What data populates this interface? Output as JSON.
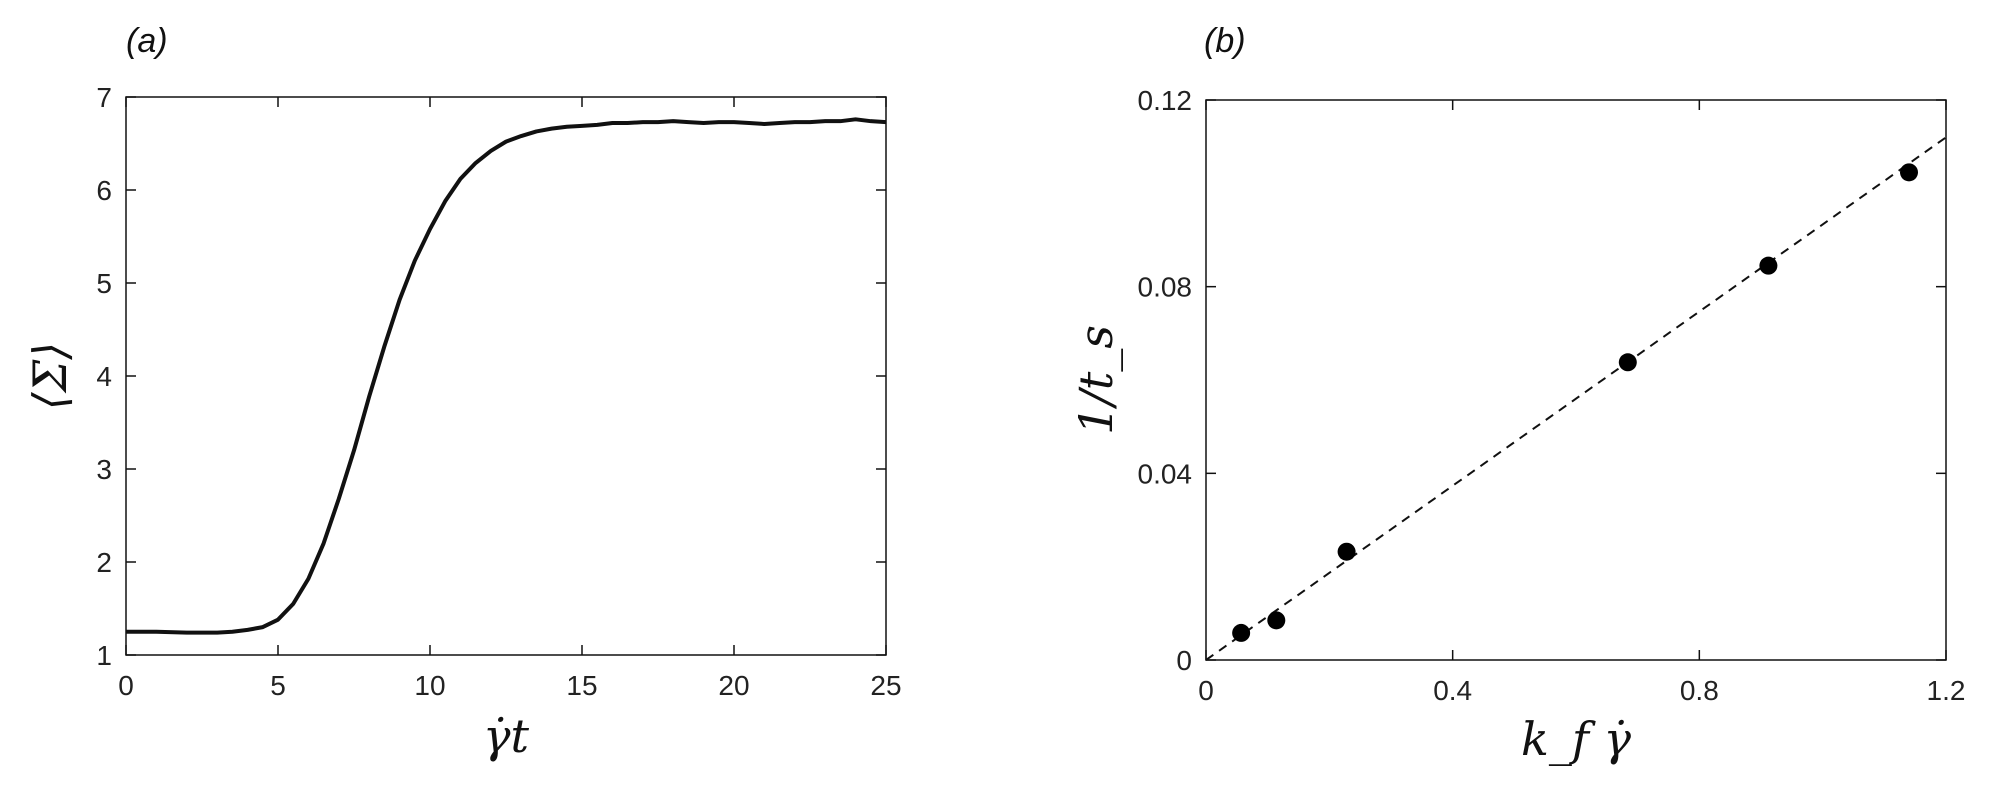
{
  "chart_data": [
    {
      "panel": "(a)",
      "type": "line",
      "xlabel": "γ̇t",
      "ylabel": "⟨Σ⟩",
      "xlim": [
        0,
        25
      ],
      "ylim": [
        1,
        7
      ],
      "xticks": [
        "0",
        "5",
        "10",
        "15",
        "20",
        "25"
      ],
      "yticks": [
        "1",
        "2",
        "3",
        "4",
        "5",
        "6",
        "7"
      ],
      "grid": false,
      "series": [
        {
          "color": "#111111",
          "x": [
            0,
            1,
            2,
            3,
            3.5,
            4,
            4.5,
            5,
            5.5,
            6,
            6.5,
            7,
            7.5,
            8,
            8.5,
            9,
            9.5,
            10,
            10.5,
            11,
            11.5,
            12,
            12.5,
            13,
            13.5,
            14,
            14.5,
            15,
            15.5,
            16,
            16.5,
            17,
            17.5,
            18,
            18.5,
            19,
            19.5,
            20,
            20.5,
            21,
            21.5,
            22,
            22.5,
            23,
            23.5,
            24,
            24.5,
            25
          ],
          "y": [
            1.25,
            1.25,
            1.24,
            1.24,
            1.25,
            1.27,
            1.3,
            1.38,
            1.55,
            1.82,
            2.2,
            2.68,
            3.2,
            3.78,
            4.32,
            4.82,
            5.24,
            5.58,
            5.88,
            6.12,
            6.29,
            6.42,
            6.52,
            6.58,
            6.63,
            6.66,
            6.68,
            6.69,
            6.7,
            6.72,
            6.72,
            6.73,
            6.73,
            6.74,
            6.73,
            6.72,
            6.73,
            6.73,
            6.72,
            6.71,
            6.72,
            6.73,
            6.73,
            6.74,
            6.74,
            6.76,
            6.74,
            6.73
          ]
        }
      ]
    },
    {
      "panel": "(b)",
      "type": "scatter",
      "xlabel": "k_f γ̇",
      "ylabel": "1/t_s",
      "xlim": [
        0,
        1.2
      ],
      "ylim": [
        0,
        0.12
      ],
      "xticks": [
        "0",
        "0.4",
        "0.8",
        "1.2"
      ],
      "yticks": [
        "0",
        "0.04",
        "0.08",
        "0.12"
      ],
      "grid": false,
      "points": {
        "x": [
          0.057,
          0.114,
          0.228,
          0.684,
          0.912,
          1.14
        ],
        "y": [
          0.0058,
          0.0085,
          0.0232,
          0.0638,
          0.0845,
          0.1045
        ]
      },
      "fit_line": {
        "style": "dashed",
        "x": [
          0,
          1.2
        ],
        "y": [
          0,
          0.112
        ]
      }
    }
  ]
}
